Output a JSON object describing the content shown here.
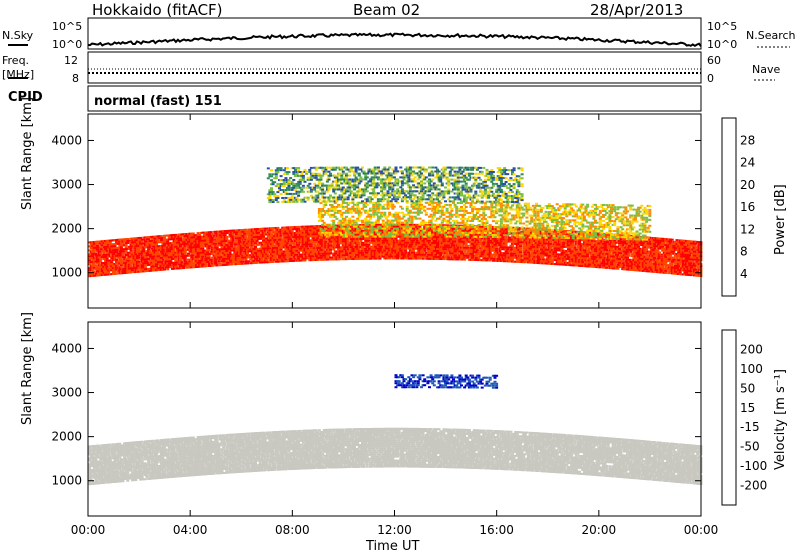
{
  "header": {
    "station": "Hokkaido (fitACF)",
    "beam": "Beam 02",
    "date": "28/Apr/2013"
  },
  "top_panels": {
    "nsky_label": "N.Sky",
    "nsky_ticks": [
      "10^5",
      "10^0"
    ],
    "nsky_right_ticks": [
      "10^5",
      "10^0"
    ],
    "nsearch_label": "N.Search",
    "freq_label": "Freq.",
    "freq_unit": "[MHz]",
    "freq_ticks": [
      "12",
      "8"
    ],
    "nave_ticks": [
      "60",
      "0"
    ],
    "nave_label": "Nave",
    "cpid_label": "CPID",
    "cpid_value": "normal (fast) 151"
  },
  "chart_data": [
    {
      "type": "heatmap",
      "title": "",
      "ylabel": "Slant Range [km]",
      "xlabel": "",
      "ylim": [
        200,
        4600
      ],
      "yticks": [
        "1000",
        "2000",
        "3000",
        "4000"
      ],
      "x_range_hours": [
        0,
        24
      ],
      "colorbar": {
        "label": "Power [dB]",
        "range": [
          0,
          32
        ],
        "ticks": [
          "4",
          "8",
          "12",
          "16",
          "20",
          "24",
          "28"
        ],
        "colors": [
          "#0000ff",
          "#2a4fa8",
          "#2e8b57",
          "#7fbf3f",
          "#ffd700",
          "#ff8c00",
          "#ff4500",
          "#ff0000"
        ]
      },
      "bands": [
        {
          "range_km": [
            900,
            1700
          ],
          "hours": [
            0,
            24
          ],
          "level": "high"
        },
        {
          "range_km": [
            1700,
            2500
          ],
          "hours": [
            9,
            22
          ],
          "level": "mid"
        },
        {
          "range_km": [
            2500,
            3300
          ],
          "hours": [
            7,
            17
          ],
          "level": "low"
        }
      ]
    },
    {
      "type": "heatmap",
      "title": "",
      "ylabel": "Slant Range [km]",
      "xlabel": "Time UT",
      "ylim": [
        200,
        4600
      ],
      "yticks": [
        "1000",
        "2000",
        "3000",
        "4000"
      ],
      "x_range_hours": [
        0,
        24
      ],
      "xticks": [
        "00:00",
        "04:00",
        "08:00",
        "12:00",
        "16:00",
        "20:00",
        "00:00"
      ],
      "colorbar": {
        "label": "Velocity [m s⁻¹]",
        "range": [
          -250,
          250
        ],
        "ticks": [
          "200",
          "100",
          "50",
          "15",
          "-15",
          "-50",
          "-100",
          "-200"
        ],
        "colors": [
          "#ff0000",
          "#ff4500",
          "#ff8c00",
          "#ffb000",
          "#c8c8c0",
          "#7fcc33",
          "#2e8b57",
          "#1e5ab4",
          "#0000cc"
        ]
      },
      "bands": [
        {
          "range_km": [
            900,
            1800
          ],
          "hours": [
            0,
            24
          ],
          "level": "groundscatter"
        },
        {
          "range_km": [
            3000,
            3300
          ],
          "hours": [
            12,
            16
          ],
          "level": "positive"
        }
      ]
    }
  ],
  "colors": {
    "frame": "#000000",
    "background": "#ffffff"
  }
}
